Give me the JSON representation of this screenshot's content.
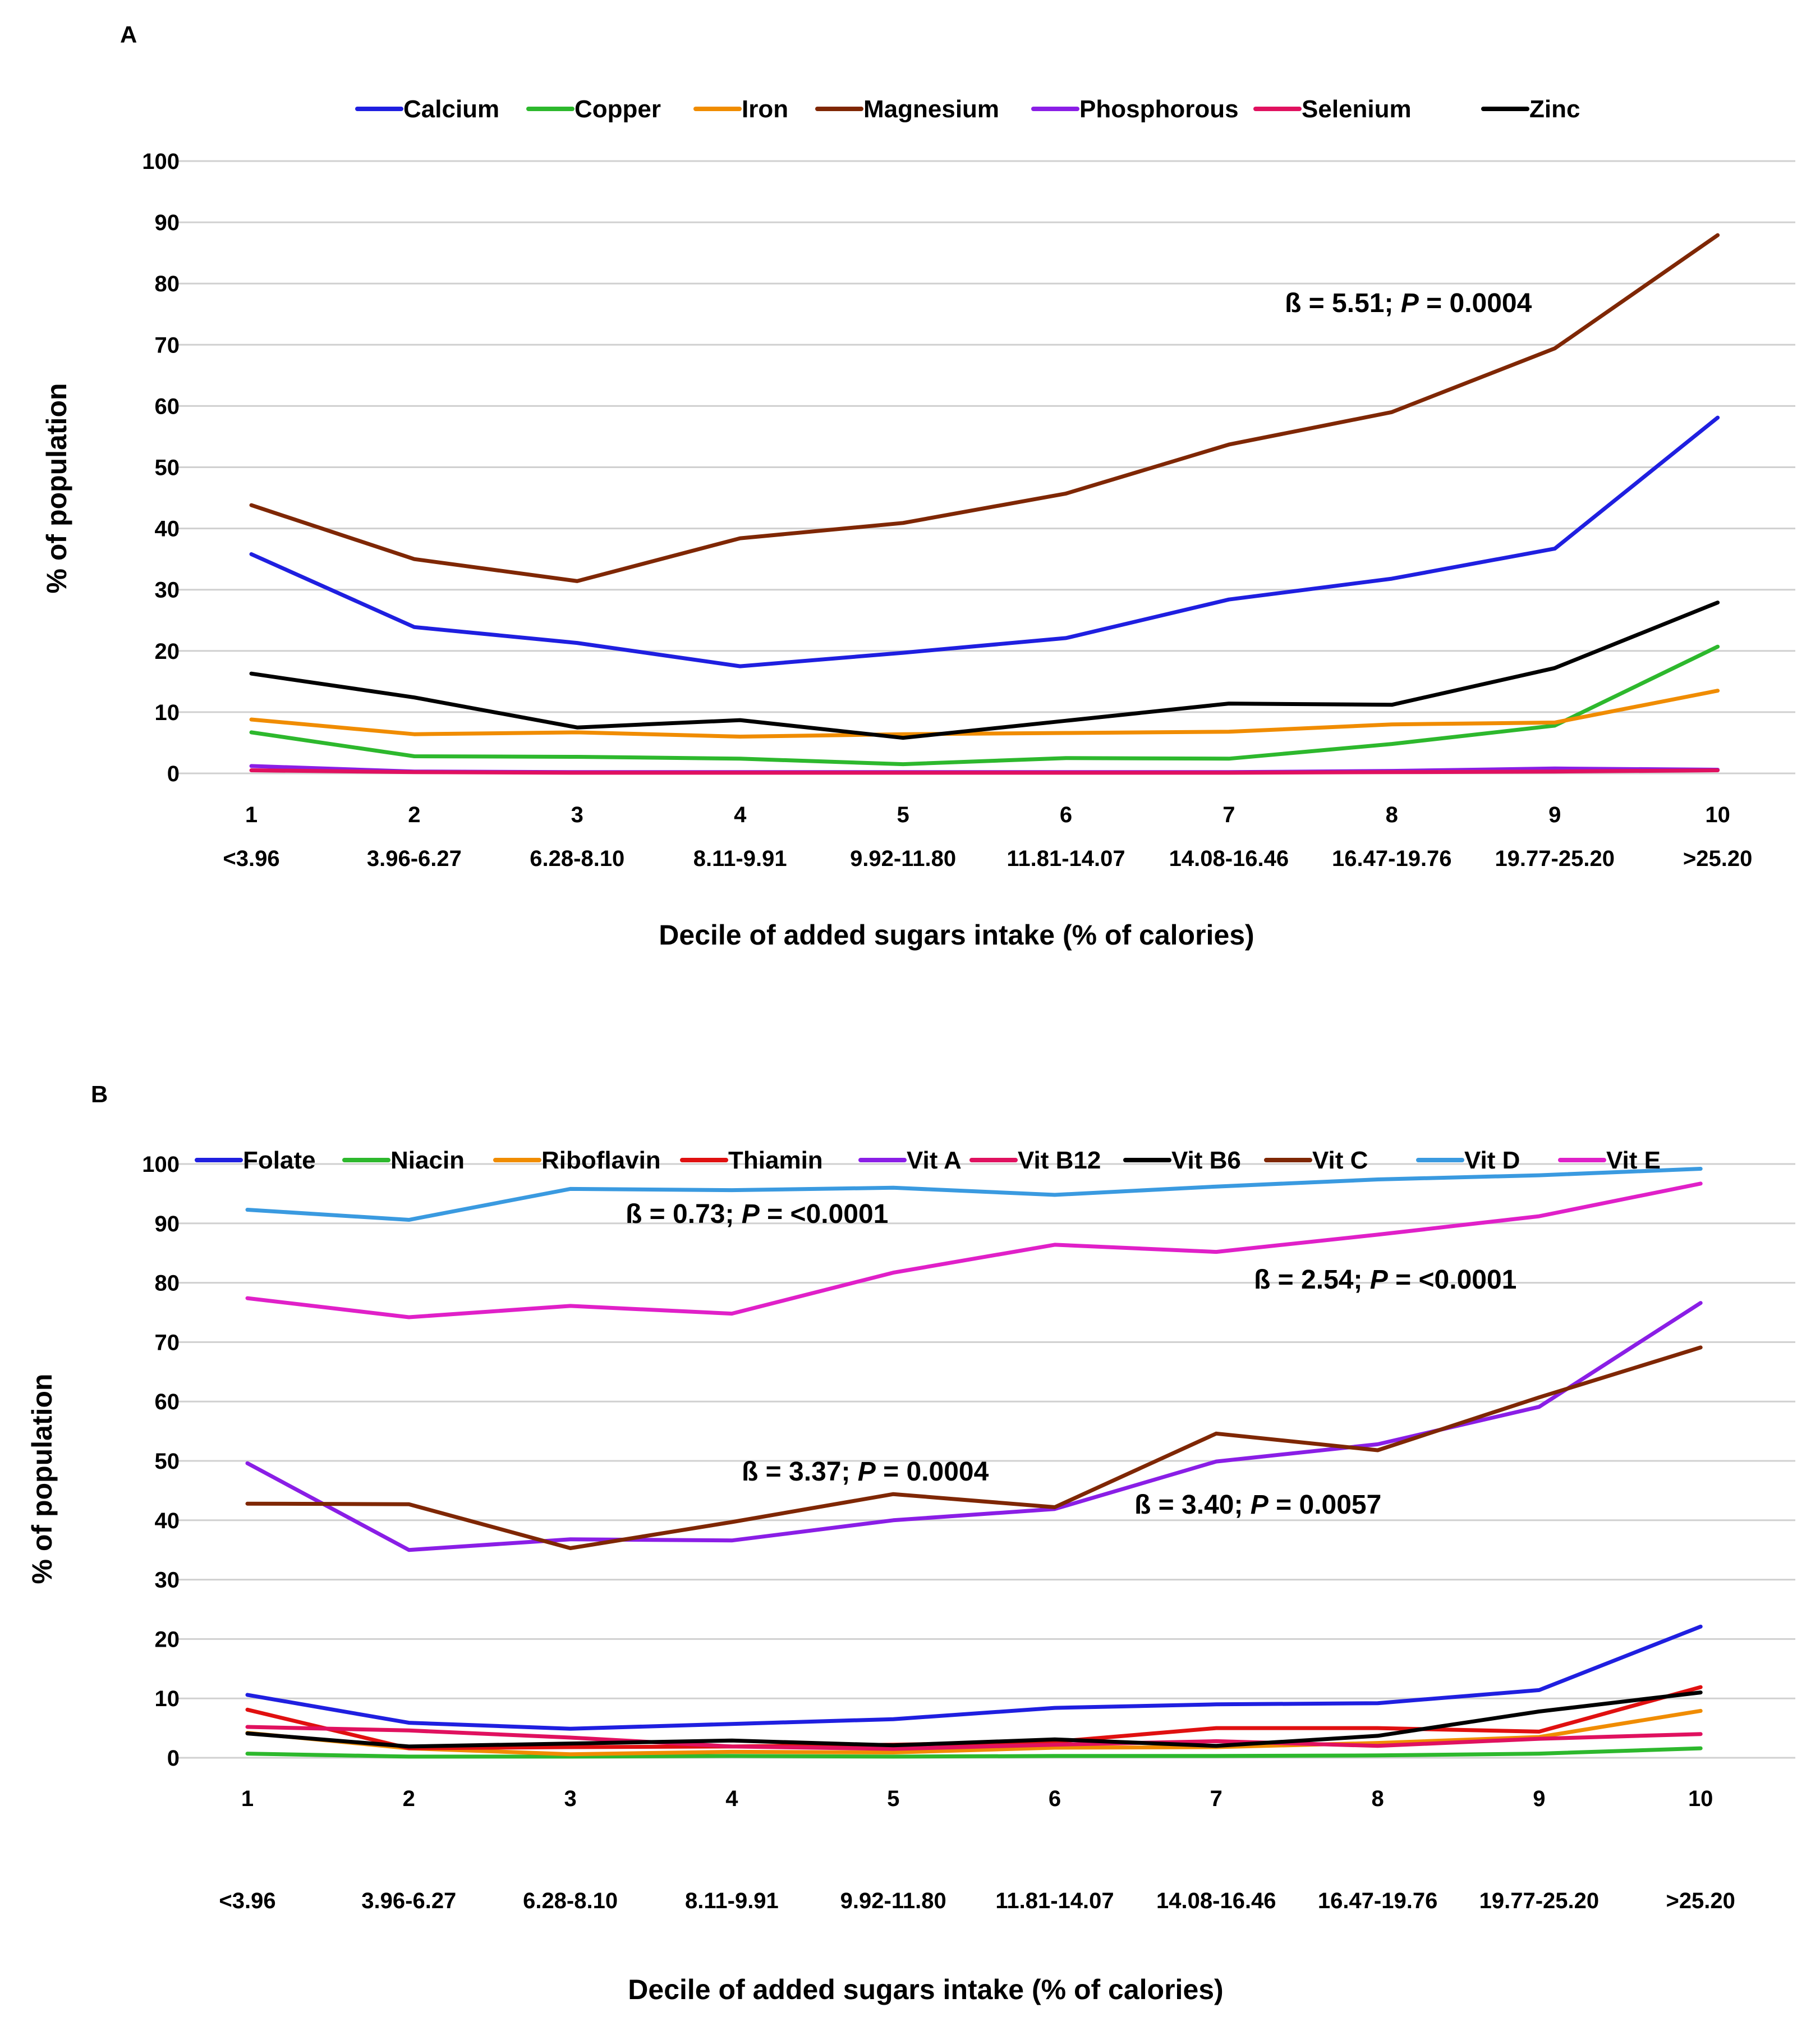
{
  "chart_data": [
    {
      "type": "line",
      "panel": "A",
      "title": "",
      "xlabel": "Decile of added sugars intake (% of calories)",
      "ylabel": "% of population",
      "categories": [
        "1",
        "2",
        "3",
        "4",
        "5",
        "6",
        "7",
        "8",
        "9",
        "10"
      ],
      "category_ranges": [
        "<3.96",
        "3.96-6.27",
        "6.28-8.10",
        "8.11-9.91",
        "9.92-11.80",
        "11.81-14.07",
        "14.08-16.46",
        "16.47-19.76",
        "19.77-25.20",
        ">25.20"
      ],
      "ylim": [
        0,
        100
      ],
      "yticks": [
        "0",
        "10",
        "20",
        "30",
        "40",
        "50",
        "60",
        "70",
        "80",
        "90",
        "100"
      ],
      "grid": true,
      "legend": "top",
      "series": [
        {
          "name": "Calcium",
          "color": "#1f1fe0",
          "values": [
            35.8,
            23.9,
            21.3,
            17.5,
            19.7,
            22.1,
            28.4,
            31.8,
            36.7,
            58.1
          ]
        },
        {
          "name": "Copper",
          "color": "#2db82d",
          "values": [
            6.7,
            2.8,
            2.7,
            2.4,
            1.5,
            2.5,
            2.4,
            4.8,
            7.8,
            20.7
          ]
        },
        {
          "name": "Iron",
          "color": "#f08c00",
          "values": [
            8.8,
            6.4,
            6.7,
            6.0,
            6.4,
            6.6,
            6.8,
            8.0,
            8.3,
            13.5
          ]
        },
        {
          "name": "Magnesium",
          "color": "#7f2704",
          "values": [
            43.8,
            35.0,
            31.4,
            38.4,
            40.9,
            45.7,
            53.7,
            59.0,
            69.4,
            87.9
          ]
        },
        {
          "name": "Phosphorous",
          "color": "#8a1ee6",
          "values": [
            1.2,
            0.3,
            0.2,
            0.2,
            0.2,
            0.2,
            0.2,
            0.4,
            0.8,
            0.6
          ]
        },
        {
          "name": "Selenium",
          "color": "#e0115f",
          "values": [
            0.5,
            0.2,
            0.1,
            0.1,
            0.1,
            0.1,
            0.1,
            0.2,
            0.3,
            0.5
          ]
        },
        {
          "name": "Zinc",
          "color": "#000000",
          "values": [
            16.3,
            12.4,
            7.5,
            8.7,
            5.8,
            8.6,
            11.4,
            11.2,
            17.2,
            27.9
          ]
        }
      ],
      "annotations": [
        {
          "beta": "ß",
          "text": " = 5.51; ",
          "p": "P",
          "value": " = 0.0004"
        }
      ]
    },
    {
      "type": "line",
      "panel": "B",
      "title": "",
      "xlabel": "Decile of added sugars intake (% of calories)",
      "ylabel": "% of population",
      "categories": [
        "1",
        "2",
        "3",
        "4",
        "5",
        "6",
        "7",
        "8",
        "9",
        "10"
      ],
      "category_ranges": [
        "<3.96",
        "3.96-6.27",
        "6.28-8.10",
        "8.11-9.91",
        "9.92-11.80",
        "11.81-14.07",
        "14.08-16.46",
        "16.47-19.76",
        "19.77-25.20",
        ">25.20"
      ],
      "ylim": [
        0,
        100
      ],
      "yticks": [
        "0",
        "10",
        "20",
        "30",
        "40",
        "50",
        "60",
        "70",
        "80",
        "90",
        "100"
      ],
      "grid": true,
      "legend": "top",
      "series": [
        {
          "name": "Folate",
          "color": "#1f1fe0",
          "values": [
            10.6,
            5.9,
            4.9,
            5.7,
            6.5,
            8.4,
            9.0,
            9.2,
            11.4,
            22.1
          ]
        },
        {
          "name": "Niacin",
          "color": "#2db82d",
          "values": [
            0.7,
            0.2,
            0.2,
            0.3,
            0.2,
            0.3,
            0.3,
            0.4,
            0.7,
            1.6
          ]
        },
        {
          "name": "Riboflavin",
          "color": "#f08c00",
          "values": [
            4.2,
            1.6,
            0.6,
            1.0,
            0.9,
            1.7,
            1.8,
            2.5,
            3.5,
            7.9
          ]
        },
        {
          "name": "Thiamin",
          "color": "#e01010",
          "values": [
            8.1,
            1.6,
            1.8,
            1.9,
            2.2,
            2.7,
            5.0,
            5.0,
            4.4,
            11.9
          ]
        },
        {
          "name": "Vit A",
          "color": "#8a1ee6",
          "values": [
            49.6,
            35.0,
            36.8,
            36.6,
            40.0,
            41.9,
            49.9,
            52.8,
            59.1,
            76.6
          ]
        },
        {
          "name": "Vit B12",
          "color": "#e0115f",
          "values": [
            5.2,
            4.6,
            3.4,
            1.9,
            1.5,
            2.2,
            2.8,
            2.0,
            3.2,
            4.0
          ]
        },
        {
          "name": "Vit B6",
          "color": "#000000",
          "values": [
            4.1,
            1.9,
            2.4,
            2.9,
            2.1,
            3.1,
            2.0,
            3.7,
            7.8,
            11.0
          ]
        },
        {
          "name": "Vit C",
          "color": "#7f2704",
          "values": [
            42.8,
            42.7,
            35.3,
            39.7,
            44.4,
            42.2,
            54.6,
            51.8,
            60.7,
            69.1
          ]
        },
        {
          "name": "Vit D",
          "color": "#3a9ae0",
          "values": [
            92.3,
            90.6,
            95.8,
            95.6,
            96.0,
            94.8,
            96.2,
            97.4,
            98.1,
            99.2
          ]
        },
        {
          "name": "Vit E",
          "color": "#e020c8",
          "values": [
            77.4,
            74.2,
            76.1,
            74.8,
            81.7,
            86.4,
            85.2,
            88.1,
            91.2,
            96.7
          ]
        }
      ],
      "annotations": [
        {
          "beta": "ß",
          "text": " = 0.73; ",
          "p": "P",
          "value": " = <0.0001"
        },
        {
          "beta": "ß",
          "text": " = 2.54; ",
          "p": "P",
          "value": " = <0.0001"
        },
        {
          "beta": "ß",
          "text": " = 3.37; ",
          "p": "P",
          "value": " = 0.0004"
        },
        {
          "beta": "ß",
          "text": " = 3.40; ",
          "p": "P",
          "value": " = 0.0057"
        }
      ]
    }
  ]
}
